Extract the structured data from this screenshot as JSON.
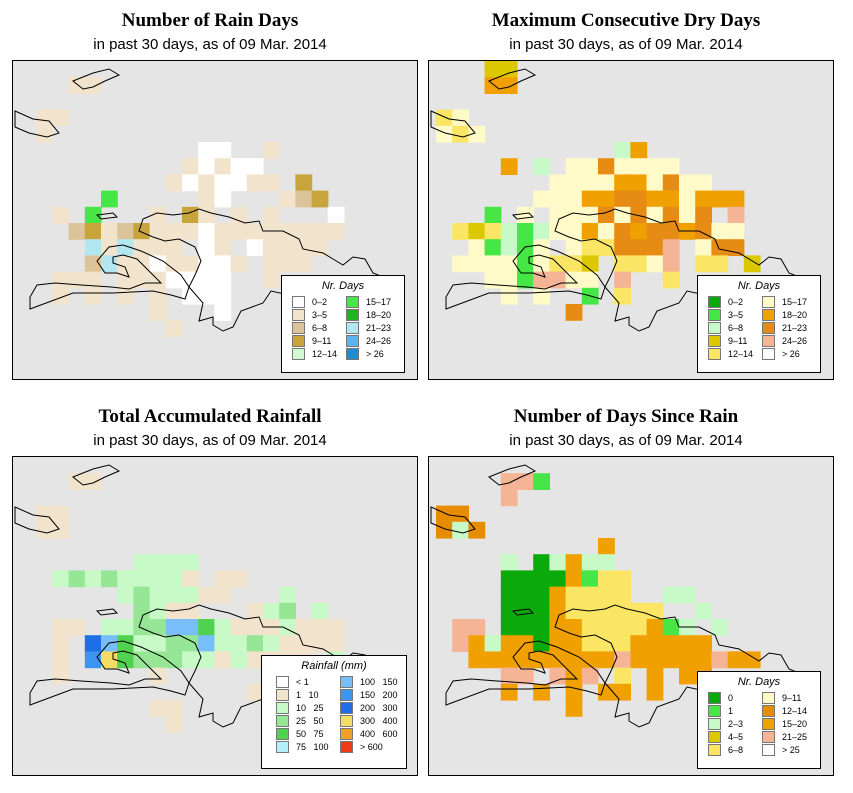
{
  "colors": {
    "sea": "#e5e5e5",
    "coast": "#000000"
  },
  "panels": [
    {
      "id": "rain-days",
      "title": "Number of Rain Days",
      "subtitle": "in past 30 days, as of  09 Mar. 2014",
      "legend": {
        "title": "Nr. Days",
        "items": [
          {
            "label": "0–2",
            "color": "#ffffff"
          },
          {
            "label": "3–5",
            "color": "#f2e4cc"
          },
          {
            "label": "6–8",
            "color": "#dcc49a"
          },
          {
            "label": "9–11",
            "color": "#c8a43c"
          },
          {
            "label": "12–14",
            "color": "#d2fad2"
          },
          {
            "label": "15–17",
            "color": "#46e646"
          },
          {
            "label": "18–20",
            "color": "#1eb41e"
          },
          {
            "label": "21–23",
            "color": "#b4e6f0"
          },
          {
            "label": "24–26",
            "color": "#5ab4f0"
          },
          {
            "label": "> 26",
            "color": "#1e8cd2"
          }
        ]
      },
      "grid": [
        "....................",
        "...11...............",
        "....................",
        ".11.................",
        ".1..................",
        "...........00..1....",
        "..........10100.....",
        ".........1010011.3..",
        ".....5.....10...123.",
        "..1.5...1.31.1.1...0",
        "...23123111011111111",
        "....717111.01.01111.",
        "....2711011001.111..",
        "..111.1110000..1....",
        "..1.1.1.1.000.......",
        "........1...0.......",
        ".........1..........",
        "....................",
        "....................",
        "...................."
      ]
    },
    {
      "id": "max-dry",
      "title": "Maximum Consecutive Dry Days",
      "subtitle": "in past 30 days, as of  09 Mar. 2014",
      "legend": {
        "title": "Nr. Days",
        "items": [
          {
            "label": "0–2",
            "color": "#0aaa0a"
          },
          {
            "label": "3–5",
            "color": "#46e646"
          },
          {
            "label": "6–8",
            "color": "#c8fac8"
          },
          {
            "label": "9–11",
            "color": "#dcc800"
          },
          {
            "label": "12–14",
            "color": "#fae664"
          },
          {
            "label": "15–17",
            "color": "#fffac8"
          },
          {
            "label": "18–20",
            "color": "#f0a000"
          },
          {
            "label": "21–23",
            "color": "#e68c14"
          },
          {
            "label": "24–26",
            "color": "#f5b496"
          },
          {
            "label": "> 26",
            "color": "#ffffff"
          }
        ]
      },
      "grid": [
        "...33...............",
        "...66...............",
        "....................",
        "45..................",
        "545.................",
        "...........26.......",
        "....6.2.5575555.....",
        ".......5555665755...",
        "......5556677665666.",
        "...1.5.5557575757.8.",
        ".434212556576776755.",
        "..51215.5447778.577.",
        ".555515443.4458.44.3",
        "...5518855.8..4.....",
        "....5.5..1.4........",
        "........7...........",
        "....................",
        "....................",
        "....................",
        "...................."
      ]
    },
    {
      "id": "total-rain",
      "title": "Total Accumulated Rainfall",
      "subtitle": "in past 30 days, as of  09 Mar. 2014",
      "legend": {
        "title": "Rainfall (mm)",
        "items": [
          {
            "label": "< 1",
            "color": "#ffffff"
          },
          {
            "label": "1   10",
            "color": "#f2e4cc"
          },
          {
            "label": "10   25",
            "color": "#c8fac8"
          },
          {
            "label": "25   50",
            "color": "#96e696"
          },
          {
            "label": "50   75",
            "color": "#50d250"
          },
          {
            "label": "75   100",
            "color": "#b4f0fa"
          },
          {
            "label": "100   150",
            "color": "#78befa"
          },
          {
            "label": "150   200",
            "color": "#3c96f0"
          },
          {
            "label": "200   300",
            "color": "#1e6ee6"
          },
          {
            "label": "300   400",
            "color": "#f5dc64"
          },
          {
            "label": "400   600",
            "color": "#f0a028"
          },
          {
            "label": "> 600",
            "color": "#f03c14"
          }
        ]
      },
      "grid": [
        "....................",
        "...11...............",
        "....................",
        ".11.................",
        ".11.................",
        "....................",
        ".......2222.........",
        "..232322221.11......",
        "......2322211...2...",
        ".......3211...123.2.",
        "..11.223366421112111",
        "..1.8642233622321111",
        "..1.79433322121111.2",
        "..1.....1.......1...",
        "..............1.....",
        "........11..........",
        ".........1..........",
        "....................",
        "....................",
        "...................."
      ]
    },
    {
      "id": "days-since",
      "title": "Number of Days Since Rain",
      "subtitle": "in past 30 days, as of  09 Mar. 2014",
      "legend": {
        "title": "Nr. Days",
        "items": [
          {
            "label": "0",
            "color": "#0aaa0a"
          },
          {
            "label": "1",
            "color": "#46e646"
          },
          {
            "label": "2–3",
            "color": "#c8fac8"
          },
          {
            "label": "4–5",
            "color": "#dcc800"
          },
          {
            "label": "6–8",
            "color": "#fae664"
          },
          {
            "label": "9–11",
            "color": "#fffac8"
          },
          {
            "label": "12–14",
            "color": "#e68c00"
          },
          {
            "label": "15–20",
            "color": "#f0a000"
          },
          {
            "label": "21–25",
            "color": "#f5b496"
          },
          {
            "label": "> 25",
            "color": "#ffffff"
          }
        ]
      },
      "grid": [
        "....................",
        "....881.............",
        "....8...............",
        "66..................",
        "626.................",
        "..........7.........",
        "....2.02722.........",
        "....00007144........",
        "....00074444..22....",
        "....0007444444..2...",
        ".88.000774444712.2..",
        ".8727707744477777...",
        "..777777777877777877",
        "....88.878.4.7.77...",
        "....7.7.7.77.7......",
        "........7...........",
        "....................",
        "....................",
        "....................",
        "...................."
      ]
    }
  ]
}
